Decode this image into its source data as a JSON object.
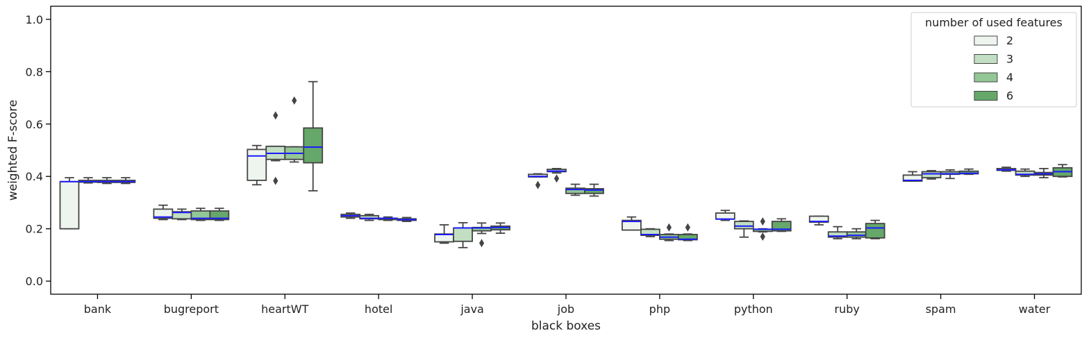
{
  "chart_data": {
    "type": "box",
    "xlabel": "black boxes",
    "ylabel": "weighted F-score",
    "ylim": [
      -0.05,
      1.05
    ],
    "yticks": [
      "0.0",
      "0.2",
      "0.4",
      "0.6",
      "0.8",
      "1.0"
    ],
    "categories": [
      "bank",
      "bugreport",
      "heartWT",
      "hotel",
      "java",
      "job",
      "php",
      "python",
      "ruby",
      "spam",
      "water"
    ],
    "legend": {
      "title": "number of used features",
      "position": "top-right",
      "entries": [
        "2",
        "3",
        "4",
        "6"
      ]
    },
    "colors": {
      "series": [
        "#eef5ee",
        "#c2dfc3",
        "#93c796",
        "#65a86a"
      ],
      "median": "#1a1aff",
      "outline": "#444444"
    },
    "series": [
      {
        "name": "2",
        "boxes": [
          {
            "wlo": 0.2,
            "q1": 0.2,
            "med": 0.38,
            "q3": 0.38,
            "whi": 0.395,
            "fliers": []
          },
          {
            "wlo": 0.235,
            "q1": 0.24,
            "med": 0.245,
            "q3": 0.275,
            "whi": 0.29,
            "fliers": []
          },
          {
            "wlo": 0.368,
            "q1": 0.385,
            "med": 0.478,
            "q3": 0.503,
            "whi": 0.518,
            "fliers": []
          },
          {
            "wlo": 0.24,
            "q1": 0.245,
            "med": 0.25,
            "q3": 0.255,
            "whi": 0.26,
            "fliers": []
          },
          {
            "wlo": 0.145,
            "q1": 0.15,
            "med": 0.178,
            "q3": 0.18,
            "whi": 0.215,
            "fliers": []
          },
          {
            "wlo": 0.398,
            "q1": 0.398,
            "med": 0.4,
            "q3": 0.408,
            "whi": 0.41,
            "fliers": [
              0.367
            ]
          },
          {
            "wlo": 0.195,
            "q1": 0.195,
            "med": 0.228,
            "q3": 0.232,
            "whi": 0.245,
            "fliers": []
          },
          {
            "wlo": 0.232,
            "q1": 0.237,
            "med": 0.237,
            "q3": 0.26,
            "whi": 0.27,
            "fliers": []
          },
          {
            "wlo": 0.215,
            "q1": 0.225,
            "med": 0.228,
            "q3": 0.248,
            "whi": 0.248,
            "fliers": []
          },
          {
            "wlo": 0.382,
            "q1": 0.382,
            "med": 0.385,
            "q3": 0.405,
            "whi": 0.418,
            "fliers": []
          },
          {
            "wlo": 0.42,
            "q1": 0.423,
            "med": 0.425,
            "q3": 0.43,
            "whi": 0.435,
            "fliers": []
          }
        ]
      },
      {
        "name": "3",
        "boxes": [
          {
            "wlo": 0.375,
            "q1": 0.378,
            "med": 0.38,
            "q3": 0.385,
            "whi": 0.395,
            "fliers": []
          },
          {
            "wlo": 0.235,
            "q1": 0.238,
            "med": 0.262,
            "q3": 0.265,
            "whi": 0.275,
            "fliers": []
          },
          {
            "wlo": 0.46,
            "q1": 0.465,
            "med": 0.488,
            "q3": 0.515,
            "whi": 0.515,
            "fliers": [
              0.383,
              0.633
            ]
          },
          {
            "wlo": 0.232,
            "q1": 0.238,
            "med": 0.24,
            "q3": 0.25,
            "whi": 0.255,
            "fliers": []
          },
          {
            "wlo": 0.128,
            "q1": 0.152,
            "med": 0.203,
            "q3": 0.203,
            "whi": 0.223,
            "fliers": []
          },
          {
            "wlo": 0.413,
            "q1": 0.418,
            "med": 0.42,
            "q3": 0.427,
            "whi": 0.43,
            "fliers": [
              0.392
            ]
          },
          {
            "wlo": 0.17,
            "q1": 0.175,
            "med": 0.178,
            "q3": 0.198,
            "whi": 0.2,
            "fliers": []
          },
          {
            "wlo": 0.168,
            "q1": 0.2,
            "med": 0.21,
            "q3": 0.228,
            "whi": 0.23,
            "fliers": []
          },
          {
            "wlo": 0.162,
            "q1": 0.168,
            "med": 0.172,
            "q3": 0.188,
            "whi": 0.208,
            "fliers": []
          },
          {
            "wlo": 0.39,
            "q1": 0.395,
            "med": 0.41,
            "q3": 0.418,
            "whi": 0.422,
            "fliers": []
          },
          {
            "wlo": 0.4,
            "q1": 0.405,
            "med": 0.408,
            "q3": 0.42,
            "whi": 0.428,
            "fliers": []
          }
        ]
      },
      {
        "name": "4",
        "boxes": [
          {
            "wlo": 0.373,
            "q1": 0.377,
            "med": 0.38,
            "q3": 0.385,
            "whi": 0.395,
            "fliers": []
          },
          {
            "wlo": 0.232,
            "q1": 0.235,
            "med": 0.24,
            "q3": 0.268,
            "whi": 0.278,
            "fliers": []
          },
          {
            "wlo": 0.455,
            "q1": 0.465,
            "med": 0.488,
            "q3": 0.513,
            "whi": 0.513,
            "fliers": [
              0.69
            ]
          },
          {
            "wlo": 0.232,
            "q1": 0.235,
            "med": 0.24,
            "q3": 0.24,
            "whi": 0.245,
            "fliers": []
          },
          {
            "wlo": 0.182,
            "q1": 0.192,
            "med": 0.203,
            "q3": 0.205,
            "whi": 0.222,
            "fliers": [
              0.145
            ]
          },
          {
            "wlo": 0.328,
            "q1": 0.335,
            "med": 0.35,
            "q3": 0.355,
            "whi": 0.37,
            "fliers": []
          },
          {
            "wlo": 0.155,
            "q1": 0.16,
            "med": 0.168,
            "q3": 0.178,
            "whi": 0.18,
            "fliers": [
              0.205
            ]
          },
          {
            "wlo": 0.188,
            "q1": 0.19,
            "med": 0.198,
            "q3": 0.198,
            "whi": 0.2,
            "fliers": [
              0.17,
              0.228
            ]
          },
          {
            "wlo": 0.162,
            "q1": 0.168,
            "med": 0.175,
            "q3": 0.188,
            "whi": 0.2,
            "fliers": []
          },
          {
            "wlo": 0.392,
            "q1": 0.408,
            "med": 0.41,
            "q3": 0.418,
            "whi": 0.425,
            "fliers": []
          },
          {
            "wlo": 0.395,
            "q1": 0.405,
            "med": 0.41,
            "q3": 0.415,
            "whi": 0.43,
            "fliers": []
          }
        ]
      },
      {
        "name": "6",
        "boxes": [
          {
            "wlo": 0.373,
            "q1": 0.377,
            "med": 0.38,
            "q3": 0.385,
            "whi": 0.395,
            "fliers": []
          },
          {
            "wlo": 0.232,
            "q1": 0.235,
            "med": 0.24,
            "q3": 0.268,
            "whi": 0.278,
            "fliers": []
          },
          {
            "wlo": 0.345,
            "q1": 0.452,
            "med": 0.512,
            "q3": 0.585,
            "whi": 0.762,
            "fliers": []
          },
          {
            "wlo": 0.228,
            "q1": 0.232,
            "med": 0.235,
            "q3": 0.238,
            "whi": 0.243,
            "fliers": []
          },
          {
            "wlo": 0.183,
            "q1": 0.196,
            "med": 0.205,
            "q3": 0.21,
            "whi": 0.222,
            "fliers": []
          },
          {
            "wlo": 0.325,
            "q1": 0.335,
            "med": 0.348,
            "q3": 0.353,
            "whi": 0.37,
            "fliers": []
          },
          {
            "wlo": 0.155,
            "q1": 0.158,
            "med": 0.16,
            "q3": 0.178,
            "whi": 0.18,
            "fliers": [
              0.205
            ]
          },
          {
            "wlo": 0.19,
            "q1": 0.192,
            "med": 0.198,
            "q3": 0.228,
            "whi": 0.238,
            "fliers": []
          },
          {
            "wlo": 0.162,
            "q1": 0.165,
            "med": 0.203,
            "q3": 0.22,
            "whi": 0.232,
            "fliers": []
          },
          {
            "wlo": 0.408,
            "q1": 0.41,
            "med": 0.412,
            "q3": 0.42,
            "whi": 0.428,
            "fliers": []
          },
          {
            "wlo": 0.398,
            "q1": 0.4,
            "med": 0.418,
            "q3": 0.433,
            "whi": 0.445,
            "fliers": []
          }
        ]
      }
    ]
  }
}
